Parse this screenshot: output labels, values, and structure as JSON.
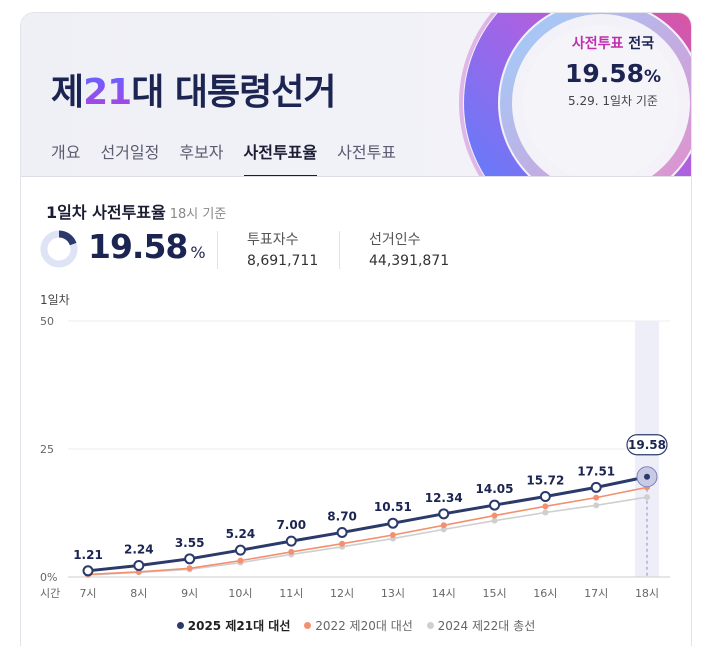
{
  "header": {
    "title_prefix": "제",
    "title_num": "21",
    "title_suffix": "대 대통령선거",
    "tabs": [
      "개요",
      "선거일정",
      "후보자",
      "사전투표율",
      "사전투표"
    ],
    "active_tab": 3
  },
  "summary": {
    "label_highlight": "사전투표",
    "label_rest": " 전국",
    "value": "19.58",
    "unit": "%",
    "date": "5.29. 1일차 기준"
  },
  "section": {
    "title": "1일차 사전투표율",
    "basis": "18시 기준",
    "rate": "19.58",
    "rate_unit": "%",
    "voters_label": "투표자수",
    "voters_value": "8,691,711",
    "electorate_label": "선거인수",
    "electorate_value": "44,391,871",
    "day_label": "1일차"
  },
  "colors": {
    "navy": "#2b3a6b",
    "orange": "#f2906f",
    "gray": "#cfcfcf",
    "highlight": "#eeeef8"
  },
  "chart_data": {
    "type": "line",
    "x_axis_label": "시간",
    "categories": [
      "7시",
      "8시",
      "9시",
      "10시",
      "11시",
      "12시",
      "13시",
      "14시",
      "15시",
      "16시",
      "17시",
      "18시"
    ],
    "y_ticks": [
      "0%",
      "25",
      "50"
    ],
    "ylim": [
      0,
      50
    ],
    "series": [
      {
        "name": "2025 제21대 대선",
        "values": [
          1.21,
          2.24,
          3.55,
          5.24,
          7.0,
          8.7,
          10.51,
          12.34,
          14.05,
          15.72,
          17.51,
          19.58
        ],
        "labels": [
          "1.21",
          "2.24",
          "3.55",
          "5.24",
          "7.00",
          "8.70",
          "10.51",
          "12.34",
          "14.05",
          "15.72",
          "17.51",
          "19.58"
        ]
      },
      {
        "name": "2022 제20대 대선",
        "values": [
          0.5,
          1.0,
          1.7,
          3.2,
          4.9,
          6.5,
          8.2,
          10.1,
          12.0,
          13.8,
          15.5,
          17.5
        ]
      },
      {
        "name": "2024 제22대 총선",
        "values": [
          0.4,
          0.9,
          1.5,
          2.8,
          4.4,
          5.9,
          7.5,
          9.3,
          11.0,
          12.6,
          14.0,
          15.6
        ]
      }
    ],
    "highlight_category": "18시",
    "legend_position": "bottom"
  }
}
